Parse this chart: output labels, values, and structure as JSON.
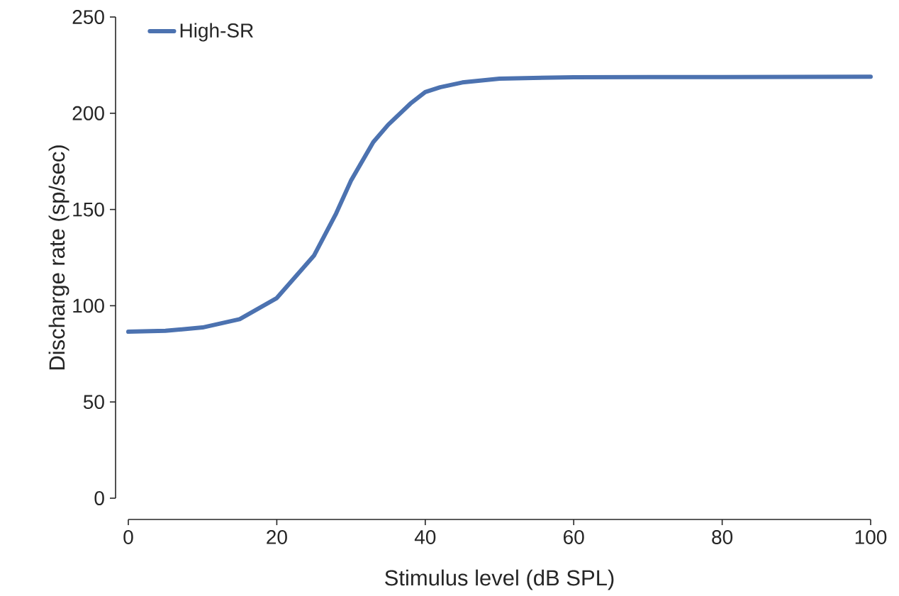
{
  "chart_data": {
    "type": "line",
    "xlabel": "Stimulus level (dB SPL)",
    "ylabel": "Discharge rate (sp/sec)",
    "x": [
      0,
      5,
      10,
      15,
      20,
      25,
      28,
      30,
      33,
      35,
      38,
      40,
      42,
      45,
      50,
      60,
      70,
      80,
      90,
      100
    ],
    "series": [
      {
        "name": "High-SR",
        "color": "#4c72b0",
        "values": [
          86.5,
          87,
          88.7,
          93,
          104,
          126,
          148,
          165,
          185,
          194,
          205,
          211,
          213.5,
          216,
          218,
          218.7,
          218.8,
          218.8,
          218.9,
          219
        ]
      }
    ],
    "xlim": [
      0,
      100
    ],
    "ylim": [
      0,
      250
    ],
    "xticks": [
      0,
      20,
      40,
      60,
      80,
      100
    ],
    "yticks": [
      0,
      50,
      100,
      150,
      200,
      250
    ],
    "legend": "top left",
    "marker": "none",
    "line_style": "solid"
  }
}
